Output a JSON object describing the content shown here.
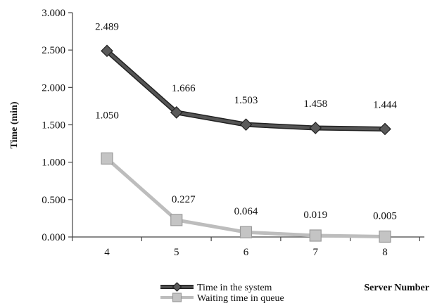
{
  "chart_data": {
    "type": "line",
    "title": "",
    "xlabel": "Server Number",
    "ylabel": "Time (min)",
    "x": [
      "4",
      "5",
      "6",
      "7",
      "8"
    ],
    "ylim": [
      0,
      3
    ],
    "y_ticks": [
      "0.000",
      "0.500",
      "1.000",
      "1.500",
      "2.000",
      "2.500",
      "3.000"
    ],
    "grid": false,
    "legend_position": "bottom",
    "series": [
      {
        "name": "Time in the system",
        "values": [
          2.489,
          1.666,
          1.503,
          1.458,
          1.444
        ],
        "labels": [
          "2.489",
          "1.666",
          "1.503",
          "1.458",
          "1.444"
        ],
        "marker": "diamond",
        "color": "#555555"
      },
      {
        "name": "Waiting time in queue",
        "values": [
          1.05,
          0.227,
          0.064,
          0.019,
          0.005
        ],
        "labels": [
          "1.050",
          "0.227",
          "0.064",
          "0.019",
          "0.005"
        ],
        "marker": "square",
        "color": "#bdbdbd"
      }
    ]
  }
}
